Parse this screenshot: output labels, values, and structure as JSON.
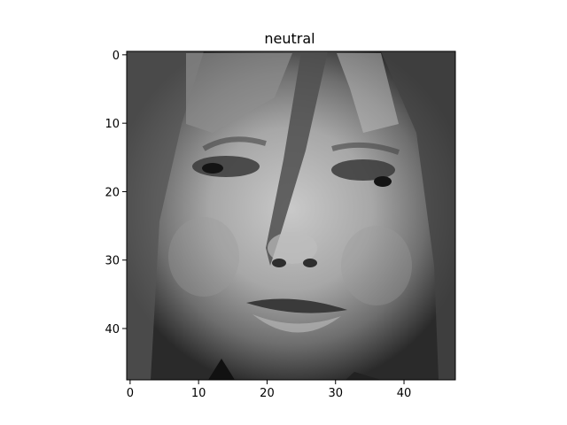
{
  "figure": {
    "title": "neutral",
    "image": {
      "description_grid_size": [
        48,
        48
      ],
      "colormap": "gray",
      "alt_kind": "grayscale face thumbnail"
    },
    "x_axis": {
      "ticks": [
        0,
        10,
        20,
        30,
        40
      ],
      "range": [
        -0.5,
        47.5
      ]
    },
    "y_axis": {
      "ticks": [
        0,
        10,
        20,
        30,
        40
      ],
      "range": [
        -0.5,
        47.5
      ],
      "inverted": true
    },
    "colors": {
      "background": "#ffffff",
      "axis": "#000000"
    }
  }
}
